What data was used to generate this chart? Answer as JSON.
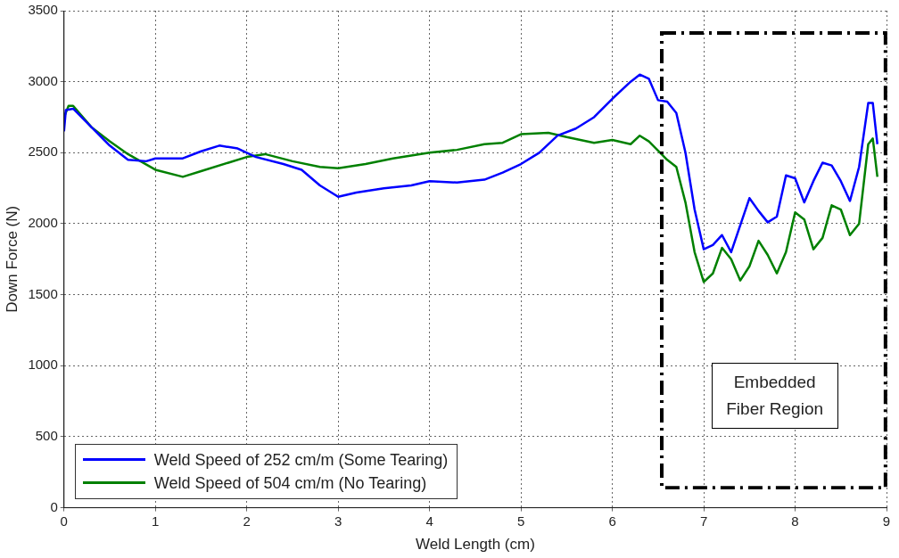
{
  "chart_data": {
    "type": "line",
    "xlabel": "Weld Length (cm)",
    "ylabel": "Down Force (N)",
    "xlim": [
      0,
      9
    ],
    "xticks": [
      0,
      1,
      2,
      3,
      4,
      5,
      6,
      7,
      8,
      9
    ],
    "ylim": [
      0,
      3500
    ],
    "yticks": [
      0,
      500,
      1000,
      1500,
      2000,
      2500,
      3000,
      3500
    ],
    "grid": true,
    "legend": "bottom left",
    "marker": "none",
    "line_style": "solid",
    "annotations": [
      "Embedded Fiber Region"
    ],
    "series": [
      {
        "name": "Weld Speed of 252 cm/m (Some Tearing)",
        "color": "#0000ff",
        "x": [
          0,
          0.02,
          0.1,
          0.3,
          0.5,
          0.7,
          0.9,
          1.0,
          1.3,
          1.5,
          1.7,
          1.9,
          2.1,
          2.4,
          2.6,
          2.8,
          3.0,
          3.2,
          3.5,
          3.8,
          4.0,
          4.3,
          4.6,
          4.8,
          5.0,
          5.2,
          5.4,
          5.6,
          5.8,
          6.0,
          6.2,
          6.3,
          6.4,
          6.5,
          6.6,
          6.7,
          6.8,
          6.9,
          7.0,
          7.1,
          7.2,
          7.3,
          7.4,
          7.5,
          7.6,
          7.7,
          7.8,
          7.9,
          8.0,
          8.1,
          8.2,
          8.3,
          8.4,
          8.5,
          8.6,
          8.7,
          8.8,
          8.85,
          8.9
        ],
        "values": [
          2650,
          2800,
          2810,
          2680,
          2550,
          2450,
          2440,
          2460,
          2460,
          2510,
          2550,
          2530,
          2470,
          2420,
          2380,
          2270,
          2190,
          2220,
          2250,
          2270,
          2300,
          2290,
          2310,
          2360,
          2420,
          2500,
          2620,
          2670,
          2750,
          2880,
          3000,
          3050,
          3020,
          2870,
          2860,
          2780,
          2500,
          2100,
          1820,
          1850,
          1920,
          1800,
          1990,
          2180,
          2090,
          2010,
          2050,
          2340,
          2320,
          2150,
          2300,
          2430,
          2410,
          2300,
          2160,
          2400,
          2850,
          2850,
          2560
        ]
      },
      {
        "name": "Weld Speed of 504 cm/m (No Tearing)",
        "color": "#008000",
        "x": [
          0,
          0.05,
          0.1,
          0.3,
          0.5,
          0.7,
          1.0,
          1.3,
          1.5,
          1.8,
          2.0,
          2.2,
          2.5,
          2.8,
          3.0,
          3.3,
          3.6,
          4.0,
          4.3,
          4.6,
          4.8,
          5.0,
          5.3,
          5.5,
          5.8,
          6.0,
          6.2,
          6.3,
          6.4,
          6.6,
          6.7,
          6.8,
          6.9,
          7.0,
          7.1,
          7.2,
          7.3,
          7.4,
          7.5,
          7.6,
          7.7,
          7.8,
          7.9,
          8.0,
          8.1,
          8.2,
          8.3,
          8.4,
          8.5,
          8.6,
          8.7,
          8.8,
          8.85,
          8.9
        ],
        "values": [
          2750,
          2830,
          2830,
          2680,
          2580,
          2490,
          2380,
          2330,
          2370,
          2430,
          2470,
          2490,
          2440,
          2400,
          2390,
          2420,
          2460,
          2500,
          2520,
          2560,
          2570,
          2630,
          2640,
          2610,
          2570,
          2590,
          2560,
          2620,
          2580,
          2450,
          2400,
          2150,
          1800,
          1590,
          1650,
          1830,
          1750,
          1600,
          1700,
          1880,
          1780,
          1650,
          1800,
          2080,
          2030,
          1820,
          1900,
          2130,
          2100,
          1920,
          2000,
          2560,
          2600,
          2330
        ]
      }
    ]
  }
}
